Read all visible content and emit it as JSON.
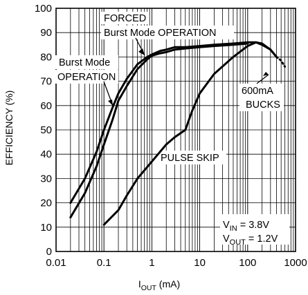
{
  "chart_data": {
    "type": "line",
    "xscale": "log",
    "xlim": [
      0.01,
      1000
    ],
    "ylim": [
      0,
      100
    ],
    "xlabel": {
      "prefix": "I",
      "sub": "OUT",
      "suffix": " (mA)"
    },
    "ylabel": "EFFICIENCY (%)",
    "x_tick_labels": [
      "0.01",
      "0.1",
      "1",
      "10",
      "100",
      "1000"
    ],
    "y_tick_labels": [
      "0",
      "10",
      "20",
      "30",
      "40",
      "50",
      "60",
      "70",
      "80",
      "90",
      "100"
    ],
    "grid": true,
    "series": [
      {
        "id": "burst",
        "x": [
          0.02,
          0.04,
          0.07,
          0.1,
          0.15,
          0.2,
          0.3,
          0.5,
          0.8,
          1,
          1.5,
          2,
          3,
          5,
          10,
          20,
          50,
          100
        ],
        "y": [
          14,
          24,
          35,
          44,
          54,
          62,
          68,
          75,
          79,
          80.5,
          81.5,
          82,
          83,
          83.5,
          84,
          84.5,
          85,
          85.5
        ]
      },
      {
        "id": "forced",
        "x": [
          0.02,
          0.04,
          0.07,
          0.1,
          0.15,
          0.2,
          0.3,
          0.5,
          0.8,
          1,
          1.5,
          2,
          3,
          5,
          10,
          20,
          50,
          100,
          150,
          200,
          300,
          400
        ],
        "y": [
          20,
          30,
          41,
          50,
          59,
          65,
          71,
          77,
          80,
          81,
          82.5,
          83,
          84,
          84,
          84.5,
          85,
          85.5,
          86,
          86,
          85,
          83,
          80
        ]
      },
      {
        "id": "pulse-skip",
        "x": [
          0.1,
          0.2,
          0.3,
          0.5,
          1,
          2,
          3,
          5,
          7,
          10,
          20,
          50,
          100,
          150,
          200,
          300,
          400
        ],
        "y": [
          11,
          17,
          23,
          30,
          37,
          44,
          47,
          50,
          58,
          65,
          73,
          80,
          84.5,
          86,
          85.5,
          83,
          80
        ]
      },
      {
        "id": "end-dotted",
        "style": "dotted",
        "x": [
          400,
          500,
          600
        ],
        "y": [
          80,
          78.5,
          76
        ]
      }
    ],
    "annotations": [
      {
        "id": "forced-line1",
        "text": "FORCED"
      },
      {
        "id": "forced-line2",
        "text": "Burst Mode OPERATION"
      },
      {
        "id": "burst-line1",
        "text": "Burst Mode"
      },
      {
        "id": "burst-line2",
        "text": "OPERATION"
      },
      {
        "id": "bucks-line1",
        "text": "600mA"
      },
      {
        "id": "bucks-line2",
        "text": "BUCKS"
      },
      {
        "id": "pulse-skip",
        "text": "PULSE SKIP"
      }
    ],
    "conditions": [
      {
        "id": "vin",
        "prefix": "V",
        "sub": "IN",
        "suffix": " = 3.8V"
      },
      {
        "id": "vout",
        "prefix": "V",
        "sub": "OUT",
        "suffix": " = 1.2V"
      }
    ]
  }
}
